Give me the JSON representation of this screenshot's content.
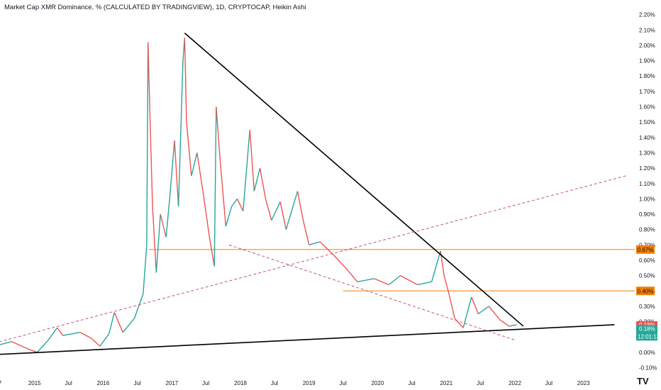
{
  "title": "Market Cap XMR Dominance, % (CALCULATED BY TRADINGVIEW), 1D, CRYPTOCAP, Heikin Ashi",
  "logo_glyph": "TV",
  "colors": {
    "up": "#26a69a",
    "down": "#ef5350",
    "trend": "#000000",
    "dashed": "#c2547f",
    "level": "#f57c00",
    "axis_text": "#131722"
  },
  "chart_data": {
    "type": "line",
    "title": "Market Cap XMR Dominance, % (CALCULATED BY TRADINGVIEW), 1D, CRYPTOCAP, Heikin Ashi",
    "y_unit": "%",
    "ylim": [
      -0.13,
      2.24
    ],
    "xlim": [
      "2014-07-01",
      "2023-10-01"
    ],
    "y_ticks": [
      "2.20%",
      "2.10%",
      "2.00%",
      "1.90%",
      "1.80%",
      "1.70%",
      "1.60%",
      "1.50%",
      "1.40%",
      "1.30%",
      "1.20%",
      "1.10%",
      "1.00%",
      "0.90%",
      "0.80%",
      "0.70%",
      "0.60%",
      "0.50%",
      "0.40%",
      "0.30%",
      "0.20%",
      "0.10%",
      "0.00%",
      "-0.10%"
    ],
    "x_ticks": [
      {
        "label": "7",
        "date": "2014-07-01"
      },
      {
        "label": "2015",
        "date": "2015-01-01"
      },
      {
        "label": "Jul",
        "date": "2015-07-01"
      },
      {
        "label": "2016",
        "date": "2016-01-01"
      },
      {
        "label": "Jul",
        "date": "2016-07-01"
      },
      {
        "label": "2017",
        "date": "2017-01-01"
      },
      {
        "label": "Jul",
        "date": "2017-07-01"
      },
      {
        "label": "2018",
        "date": "2018-01-01"
      },
      {
        "label": "Jul",
        "date": "2018-07-01"
      },
      {
        "label": "2019",
        "date": "2019-01-01"
      },
      {
        "label": "Jul",
        "date": "2019-07-01"
      },
      {
        "label": "2020",
        "date": "2020-01-01"
      },
      {
        "label": "Jul",
        "date": "2020-07-01"
      },
      {
        "label": "2021",
        "date": "2021-01-01"
      },
      {
        "label": "Jul",
        "date": "2021-07-01"
      },
      {
        "label": "2022",
        "date": "2022-01-01"
      },
      {
        "label": "Jul",
        "date": "2022-07-01"
      },
      {
        "label": "2023",
        "date": "2023-01-01"
      }
    ],
    "series": [
      {
        "values": [
          {
            "x": "2014-06-01",
            "y": 0.04
          },
          {
            "x": "2014-09-01",
            "y": 0.07
          },
          {
            "x": "2014-12-01",
            "y": 0.02
          },
          {
            "x": "2015-01-15",
            "y": 0.0
          },
          {
            "x": "2015-03-15",
            "y": 0.08
          },
          {
            "x": "2015-05-01",
            "y": 0.16
          },
          {
            "x": "2015-06-01",
            "y": 0.11
          },
          {
            "x": "2015-09-01",
            "y": 0.13
          },
          {
            "x": "2015-11-01",
            "y": 0.09
          },
          {
            "x": "2015-12-15",
            "y": 0.04
          },
          {
            "x": "2016-02-01",
            "y": 0.12
          },
          {
            "x": "2016-03-01",
            "y": 0.26
          },
          {
            "x": "2016-04-15",
            "y": 0.13
          },
          {
            "x": "2016-06-15",
            "y": 0.22
          },
          {
            "x": "2016-08-01",
            "y": 0.38
          },
          {
            "x": "2016-08-20",
            "y": 0.7
          },
          {
            "x": "2016-08-27",
            "y": 2.02
          },
          {
            "x": "2016-09-05",
            "y": 1.6
          },
          {
            "x": "2016-09-20",
            "y": 0.95
          },
          {
            "x": "2016-10-10",
            "y": 0.52
          },
          {
            "x": "2016-11-01",
            "y": 0.9
          },
          {
            "x": "2016-12-01",
            "y": 0.75
          },
          {
            "x": "2016-12-20",
            "y": 1.0
          },
          {
            "x": "2017-01-15",
            "y": 1.38
          },
          {
            "x": "2017-02-05",
            "y": 0.95
          },
          {
            "x": "2017-03-01",
            "y": 1.9
          },
          {
            "x": "2017-03-10",
            "y": 2.05
          },
          {
            "x": "2017-03-20",
            "y": 1.5
          },
          {
            "x": "2017-04-15",
            "y": 1.15
          },
          {
            "x": "2017-05-15",
            "y": 1.3
          },
          {
            "x": "2017-06-15",
            "y": 1.05
          },
          {
            "x": "2017-07-20",
            "y": 0.75
          },
          {
            "x": "2017-08-15",
            "y": 0.56
          },
          {
            "x": "2017-08-25",
            "y": 1.6
          },
          {
            "x": "2017-09-15",
            "y": 1.25
          },
          {
            "x": "2017-10-15",
            "y": 0.82
          },
          {
            "x": "2017-11-15",
            "y": 0.95
          },
          {
            "x": "2017-12-15",
            "y": 1.0
          },
          {
            "x": "2018-01-15",
            "y": 0.92
          },
          {
            "x": "2018-02-20",
            "y": 1.45
          },
          {
            "x": "2018-03-15",
            "y": 1.05
          },
          {
            "x": "2018-04-15",
            "y": 1.2
          },
          {
            "x": "2018-05-15",
            "y": 1.0
          },
          {
            "x": "2018-06-15",
            "y": 0.86
          },
          {
            "x": "2018-08-01",
            "y": 0.98
          },
          {
            "x": "2018-09-01",
            "y": 0.8
          },
          {
            "x": "2018-11-01",
            "y": 1.05
          },
          {
            "x": "2018-12-01",
            "y": 0.86
          },
          {
            "x": "2019-01-01",
            "y": 0.7
          },
          {
            "x": "2019-03-01",
            "y": 0.72
          },
          {
            "x": "2019-05-15",
            "y": 0.63
          },
          {
            "x": "2019-07-15",
            "y": 0.55
          },
          {
            "x": "2019-09-15",
            "y": 0.46
          },
          {
            "x": "2019-12-15",
            "y": 0.48
          },
          {
            "x": "2020-03-01",
            "y": 0.44
          },
          {
            "x": "2020-05-01",
            "y": 0.5
          },
          {
            "x": "2020-08-01",
            "y": 0.44
          },
          {
            "x": "2020-10-15",
            "y": 0.46
          },
          {
            "x": "2020-12-01",
            "y": 0.66
          },
          {
            "x": "2020-12-20",
            "y": 0.5
          },
          {
            "x": "2021-01-15",
            "y": 0.38
          },
          {
            "x": "2021-02-15",
            "y": 0.22
          },
          {
            "x": "2021-04-01",
            "y": 0.16
          },
          {
            "x": "2021-05-15",
            "y": 0.36
          },
          {
            "x": "2021-06-20",
            "y": 0.25
          },
          {
            "x": "2021-08-15",
            "y": 0.3
          },
          {
            "x": "2021-10-15",
            "y": 0.21
          },
          {
            "x": "2021-12-01",
            "y": 0.17
          },
          {
            "x": "2022-01-10",
            "y": 0.18
          }
        ]
      }
    ],
    "trend_lines": [
      {
        "style": "solid",
        "from": {
          "x": "2014-06-01",
          "y": -0.015
        },
        "to": {
          "x": "2023-06-15",
          "y": 0.18
        }
      },
      {
        "style": "solid",
        "from": {
          "x": "2017-03-10",
          "y": 2.08
        },
        "to": {
          "x": "2022-02-15",
          "y": 0.17
        }
      },
      {
        "style": "dashed",
        "from": {
          "x": "2014-06-01",
          "y": 0.06
        },
        "to": {
          "x": "2023-08-15",
          "y": 1.15
        }
      },
      {
        "style": "dashed",
        "from": {
          "x": "2017-11-01",
          "y": 0.7
        },
        "to": {
          "x": "2022-01-01",
          "y": 0.08
        }
      }
    ],
    "levels": [
      {
        "y": 0.67,
        "from": "2016-09-01",
        "label": "0.67%"
      },
      {
        "y": 0.4,
        "from": "2019-07-01",
        "label": "0.40%"
      }
    ],
    "last_value_badges": [
      {
        "y": 0.18,
        "label": "0.18%",
        "kind": "down"
      },
      {
        "y": 0.155,
        "label": "0.18%",
        "sublabel": "12:01:13",
        "kind": "up"
      }
    ]
  }
}
